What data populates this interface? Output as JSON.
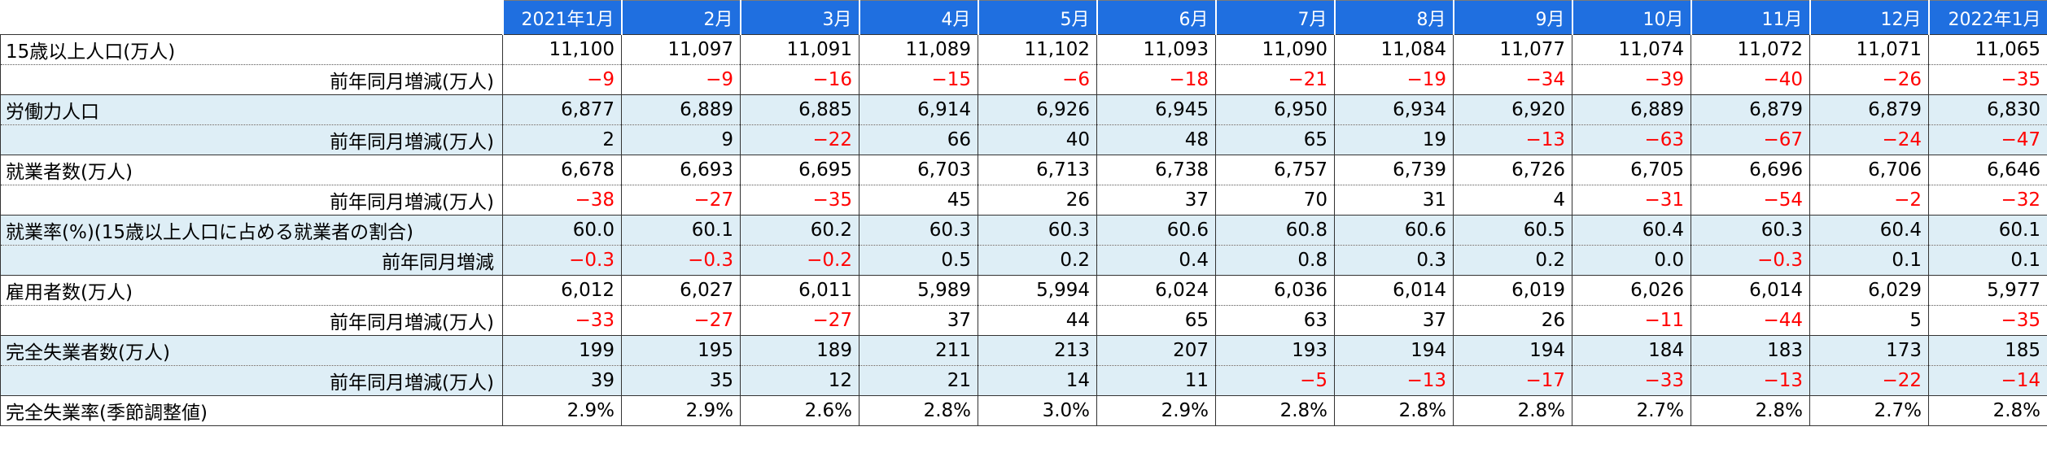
{
  "header": [
    "2021年1月",
    "2月",
    "3月",
    "4月",
    "5月",
    "6月",
    "7月",
    "8月",
    "9月",
    "10月",
    "11月",
    "12月",
    "2022年1月"
  ],
  "rows": [
    {
      "label": "15歳以上人口(万人)",
      "type": "main",
      "shade": false,
      "values": [
        "11,100",
        "11,097",
        "11,091",
        "11,089",
        "11,102",
        "11,093",
        "11,090",
        "11,084",
        "11,077",
        "11,074",
        "11,072",
        "11,071",
        "11,065"
      ]
    },
    {
      "label": "前年同月増減(万人)",
      "type": "sub",
      "shade": false,
      "values": [
        "−9",
        "−9",
        "−16",
        "−15",
        "−6",
        "−18",
        "−21",
        "−19",
        "−34",
        "−39",
        "−40",
        "−26",
        "−35"
      ]
    },
    {
      "label": "労働力人口",
      "type": "main",
      "shade": true,
      "values": [
        "6,877",
        "6,889",
        "6,885",
        "6,914",
        "6,926",
        "6,945",
        "6,950",
        "6,934",
        "6,920",
        "6,889",
        "6,879",
        "6,879",
        "6,830"
      ]
    },
    {
      "label": "前年同月増減(万人)",
      "type": "sub",
      "shade": true,
      "values": [
        "2",
        "9",
        "−22",
        "66",
        "40",
        "48",
        "65",
        "19",
        "−13",
        "−63",
        "−67",
        "−24",
        "−47"
      ]
    },
    {
      "label": "就業者数(万人)",
      "type": "main",
      "shade": false,
      "values": [
        "6,678",
        "6,693",
        "6,695",
        "6,703",
        "6,713",
        "6,738",
        "6,757",
        "6,739",
        "6,726",
        "6,705",
        "6,696",
        "6,706",
        "6,646"
      ]
    },
    {
      "label": "前年同月増減(万人)",
      "type": "sub",
      "shade": false,
      "values": [
        "−38",
        "−27",
        "−35",
        "45",
        "26",
        "37",
        "70",
        "31",
        "4",
        "−31",
        "−54",
        "−2",
        "−32"
      ]
    },
    {
      "label": "就業率(%)(15歳以上人口に占める就業者の割合)",
      "type": "main",
      "shade": true,
      "values": [
        "60.0",
        "60.1",
        "60.2",
        "60.3",
        "60.3",
        "60.6",
        "60.8",
        "60.6",
        "60.5",
        "60.4",
        "60.3",
        "60.4",
        "60.1"
      ]
    },
    {
      "label": "前年同月増減",
      "type": "sub",
      "shade": true,
      "values": [
        "−0.3",
        "−0.3",
        "−0.2",
        "0.5",
        "0.2",
        "0.4",
        "0.8",
        "0.3",
        "0.2",
        "0.0",
        "−0.3",
        "0.1",
        "0.1"
      ]
    },
    {
      "label": "雇用者数(万人)",
      "type": "main",
      "shade": false,
      "values": [
        "6,012",
        "6,027",
        "6,011",
        "5,989",
        "5,994",
        "6,024",
        "6,036",
        "6,014",
        "6,019",
        "6,026",
        "6,014",
        "6,029",
        "5,977"
      ]
    },
    {
      "label": "前年同月増減(万人)",
      "type": "sub",
      "shade": false,
      "values": [
        "−33",
        "−27",
        "−27",
        "37",
        "44",
        "65",
        "63",
        "37",
        "26",
        "−11",
        "−44",
        "5",
        "−35"
      ]
    },
    {
      "label": "完全失業者数(万人)",
      "type": "main",
      "shade": true,
      "values": [
        "199",
        "195",
        "189",
        "211",
        "213",
        "207",
        "193",
        "194",
        "194",
        "184",
        "183",
        "173",
        "185"
      ]
    },
    {
      "label": "前年同月増減(万人)",
      "type": "sub",
      "shade": true,
      "values": [
        "39",
        "35",
        "12",
        "21",
        "14",
        "11",
        "−5",
        "−13",
        "−17",
        "−33",
        "−13",
        "−22",
        "−14"
      ]
    },
    {
      "label": "完全失業率(季節調整値)",
      "type": "last",
      "shade": false,
      "values": [
        "2.9%",
        "2.9%",
        "2.6%",
        "2.8%",
        "3.0%",
        "2.9%",
        "2.8%",
        "2.8%",
        "2.8%",
        "2.7%",
        "2.8%",
        "2.7%",
        "2.8%"
      ]
    }
  ],
  "colors": {
    "header_bg": "#1f6fe0",
    "shade_bg": "#deeef6",
    "negative": "#ff0000"
  }
}
